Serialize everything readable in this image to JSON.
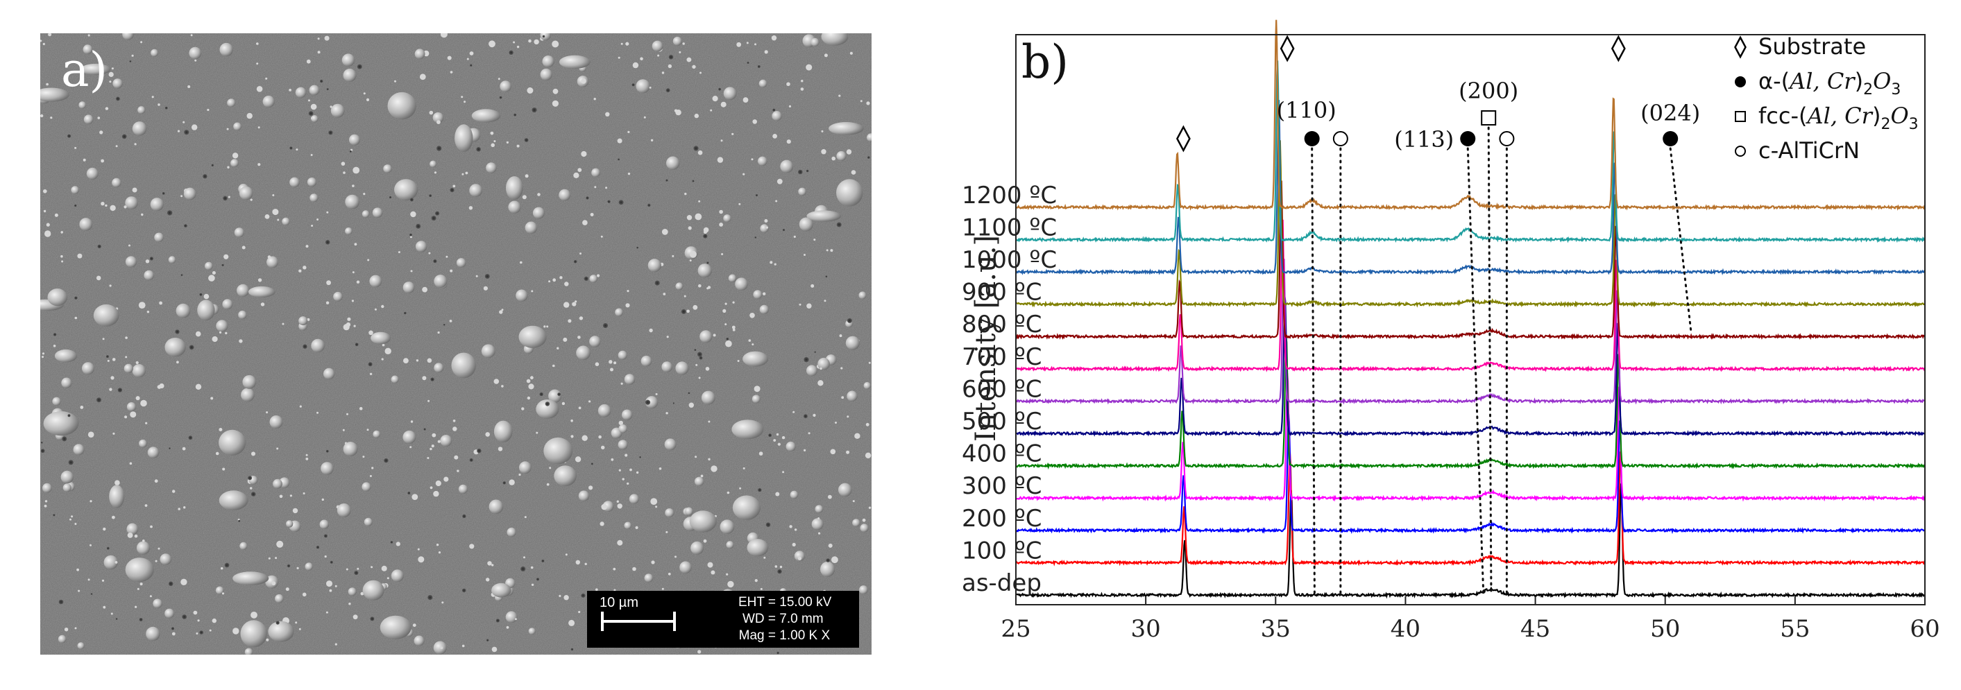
{
  "panel_a": {
    "label": "a)",
    "scale_label": "10 µm",
    "info": [
      {
        "key": "EHT =",
        "value": "15.00 kV"
      },
      {
        "key": "WD =",
        "value": "7.0 mm"
      },
      {
        "key": "Mag =",
        "value": "1.00 K X"
      }
    ]
  },
  "chart_data": {
    "type": "line",
    "panel_label": "b)",
    "ylabel": "Intensity [a.u.]",
    "xlabel": "",
    "xlim": [
      25,
      60
    ],
    "x_ticks": [
      25,
      30,
      35,
      40,
      45,
      50,
      55,
      60
    ],
    "series": [
      {
        "name": "as-dep",
        "color": "#000000",
        "broad_peak": 0.1,
        "c1": 0
      },
      {
        "name": "100 ºC",
        "color": "#ff0000",
        "broad_peak": 0.1,
        "c1": 0
      },
      {
        "name": "200 ºC",
        "color": "#0000ff",
        "broad_peak": 0.1,
        "c1": 0
      },
      {
        "name": "300 ºC",
        "color": "#ff00ff",
        "broad_peak": 0.1,
        "c1": 0
      },
      {
        "name": "400 ºC",
        "color": "#008000",
        "broad_peak": 0.1,
        "c1": 0
      },
      {
        "name": "500 ºC",
        "color": "#000080",
        "broad_peak": 0.1,
        "c1": 0
      },
      {
        "name": "600 ºC",
        "color": "#9932cc",
        "broad_peak": 0.1,
        "c1": 0
      },
      {
        "name": "700 ºC",
        "color": "#ff00a0",
        "broad_peak": 0.1,
        "c1": 0
      },
      {
        "name": "800 ºC",
        "color": "#8b0000",
        "broad_peak": 0.1,
        "c1": 0.05
      },
      {
        "name": "900 ºC",
        "color": "#808000",
        "broad_peak": 0.05,
        "c1": 0.08
      },
      {
        "name": "1000 ºC",
        "color": "#1f5faa",
        "broad_peak": 0.04,
        "c1": 0.12
      },
      {
        "name": "1100 ºC",
        "color": "#1f9f9f",
        "broad_peak": 0.02,
        "c1": 0.25
      },
      {
        "name": "1200 ºC",
        "color": "#b8732c",
        "broad_peak": 0.02,
        "c1": 0.25
      }
    ],
    "substrate_peaks": [
      31.5,
      35.6,
      48.3
    ],
    "reflections": [
      {
        "label": "(110)",
        "marker": "filled-circle",
        "top_x": 36.4,
        "bottom_x": 36.5
      },
      {
        "label": "",
        "marker": "open-circle",
        "top_x": 37.5,
        "bottom_x": 37.5
      },
      {
        "label": "(113)",
        "marker": "filled-circle",
        "top_x": 42.4,
        "bottom_x": 43.0
      },
      {
        "label": "(200)",
        "marker": "open-square",
        "top_x": 43.2,
        "bottom_x": 43.3
      },
      {
        "label": "",
        "marker": "open-circle",
        "top_x": 43.9,
        "bottom_x": 43.9
      },
      {
        "label": "(024)",
        "marker": "filled-circle",
        "top_x": 50.2,
        "bottom_x": 51.0
      }
    ],
    "legend": [
      {
        "marker": "diamond",
        "text": "Substrate"
      },
      {
        "marker": "filled-circle",
        "prefix": "α-(",
        "formula": "Al, Cr",
        "sub": "2",
        "o": "O",
        "osub": "3"
      },
      {
        "marker": "open-square",
        "prefix": "fcc-(",
        "formula": "Al, Cr",
        "sub": "2",
        "o": "O",
        "osub": "3"
      },
      {
        "marker": "open-circle",
        "text": "c-AlTiCrN"
      }
    ]
  }
}
